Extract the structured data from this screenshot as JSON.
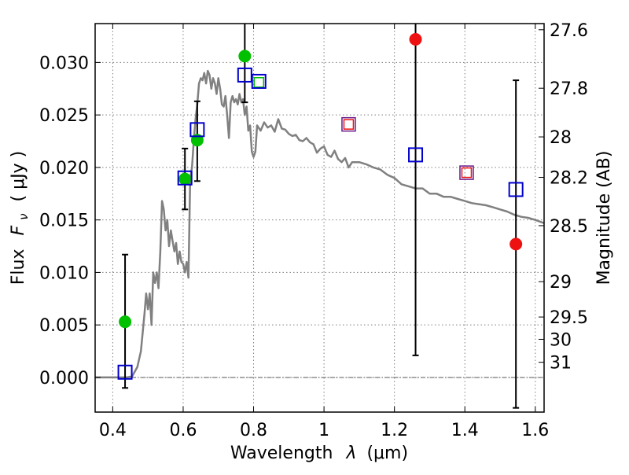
{
  "chart_data": {
    "type": "scatter",
    "title": "",
    "xlabel": "Wavelength",
    "xlabel_symbol": "λ",
    "xlabel_unit": "(μm)",
    "ylabel": "Flux",
    "ylabel_symbol": "F",
    "ylabel_sub": "ν",
    "ylabel_unit": "( μJy )",
    "y2label": "Magnitude (AB)",
    "xlim": [
      0.35,
      1.625
    ],
    "ylim": [
      -0.0033,
      0.0337
    ],
    "grid": true,
    "grid_style": "dotted",
    "x_ticks": [
      {
        "value": 0.4,
        "label": "0.4"
      },
      {
        "value": 0.6,
        "label": "0.6"
      },
      {
        "value": 0.8,
        "label": "0.8"
      },
      {
        "value": 1.0,
        "label": "1"
      },
      {
        "value": 1.2,
        "label": "1.2"
      },
      {
        "value": 1.4,
        "label": "1.4"
      },
      {
        "value": 1.6,
        "label": "1.6"
      }
    ],
    "y_ticks": [
      {
        "value": 0.0,
        "label": "0.000"
      },
      {
        "value": 0.005,
        "label": "0.005"
      },
      {
        "value": 0.01,
        "label": "0.010"
      },
      {
        "value": 0.015,
        "label": "0.015"
      },
      {
        "value": 0.02,
        "label": "0.020"
      },
      {
        "value": 0.025,
        "label": "0.025"
      },
      {
        "value": 0.03,
        "label": "0.030"
      }
    ],
    "mag_ticks": [
      {
        "value": 27.6,
        "label": "27.6"
      },
      {
        "value": 27.8,
        "label": "27.8"
      },
      {
        "value": 28.0,
        "label": "28"
      },
      {
        "value": 28.2,
        "label": "28.2"
      },
      {
        "value": 28.5,
        "label": "28.5"
      },
      {
        "value": 29.0,
        "label": "29"
      },
      {
        "value": 29.5,
        "label": "29.5"
      },
      {
        "value": 30.0,
        "label": "30"
      },
      {
        "value": 31.0,
        "label": "31"
      }
    ],
    "colors": {
      "model": "#808080",
      "green": "#00c000",
      "red": "#ee1111",
      "blue_box": "#0000cc",
      "errorbar": "#000000",
      "grid": "#7f7f7f",
      "inner_box_red": "#ee1111",
      "inner_box_green": "#00c000"
    },
    "model_sed": {
      "x": [
        0.35,
        0.4,
        0.44,
        0.455,
        0.47,
        0.48,
        0.49,
        0.495,
        0.5,
        0.505,
        0.51,
        0.515,
        0.52,
        0.525,
        0.53,
        0.535,
        0.54,
        0.545,
        0.55,
        0.555,
        0.56,
        0.565,
        0.57,
        0.575,
        0.58,
        0.585,
        0.59,
        0.595,
        0.6,
        0.605,
        0.61,
        0.615,
        0.62,
        0.625,
        0.63,
        0.635,
        0.64,
        0.645,
        0.65,
        0.655,
        0.66,
        0.665,
        0.67,
        0.675,
        0.68,
        0.685,
        0.69,
        0.695,
        0.7,
        0.705,
        0.71,
        0.715,
        0.72,
        0.725,
        0.73,
        0.735,
        0.74,
        0.745,
        0.75,
        0.755,
        0.76,
        0.765,
        0.77,
        0.775,
        0.78,
        0.785,
        0.79,
        0.795,
        0.8,
        0.805,
        0.81,
        0.82,
        0.83,
        0.84,
        0.85,
        0.86,
        0.87,
        0.88,
        0.89,
        0.9,
        0.91,
        0.92,
        0.93,
        0.94,
        0.95,
        0.96,
        0.97,
        0.98,
        0.99,
        1.0,
        1.01,
        1.02,
        1.03,
        1.04,
        1.05,
        1.06,
        1.07,
        1.08,
        1.1,
        1.12,
        1.14,
        1.16,
        1.18,
        1.2,
        1.22,
        1.24,
        1.26,
        1.28,
        1.3,
        1.32,
        1.34,
        1.36,
        1.38,
        1.4,
        1.42,
        1.44,
        1.46,
        1.48,
        1.5,
        1.52,
        1.54,
        1.56,
        1.58,
        1.6,
        1.625
      ],
      "y": [
        0.0,
        0.0,
        0.0,
        0.0001,
        0.001,
        0.0025,
        0.006,
        0.008,
        0.0065,
        0.008,
        0.005,
        0.01,
        0.009,
        0.01,
        0.0085,
        0.012,
        0.0168,
        0.016,
        0.014,
        0.015,
        0.0125,
        0.014,
        0.013,
        0.012,
        0.0128,
        0.0108,
        0.012,
        0.011,
        0.0108,
        0.01,
        0.011,
        0.0095,
        0.019,
        0.02,
        0.0225,
        0.0245,
        0.026,
        0.028,
        0.0285,
        0.0283,
        0.029,
        0.028,
        0.0292,
        0.0288,
        0.0275,
        0.0285,
        0.028,
        0.027,
        0.0285,
        0.0275,
        0.026,
        0.0258,
        0.0268,
        0.025,
        0.0228,
        0.0262,
        0.0268,
        0.0262,
        0.0265,
        0.026,
        0.027,
        0.0262,
        0.0265,
        0.025,
        0.0258,
        0.0235,
        0.024,
        0.0215,
        0.021,
        0.0215,
        0.024,
        0.0235,
        0.0243,
        0.0238,
        0.024,
        0.0234,
        0.0246,
        0.0237,
        0.0236,
        0.0232,
        0.023,
        0.0231,
        0.0226,
        0.0225,
        0.0228,
        0.0224,
        0.0222,
        0.0214,
        0.0218,
        0.022,
        0.0212,
        0.021,
        0.0216,
        0.0208,
        0.0205,
        0.0209,
        0.02,
        0.0205,
        0.0205,
        0.0203,
        0.02,
        0.0198,
        0.0193,
        0.019,
        0.0184,
        0.0182,
        0.018,
        0.018,
        0.0175,
        0.0175,
        0.0172,
        0.0172,
        0.017,
        0.0168,
        0.0166,
        0.0165,
        0.0164,
        0.0162,
        0.016,
        0.0158,
        0.0155,
        0.0153,
        0.0152,
        0.015,
        0.0147
      ]
    },
    "errorbars": [
      {
        "x": 0.435,
        "low": -0.001,
        "high": 0.0117
      },
      {
        "x": 0.605,
        "low": 0.016,
        "high": 0.0218
      },
      {
        "x": 0.64,
        "low": 0.0187,
        "high": 0.0263
      },
      {
        "x": 0.775,
        "low": 0.0262,
        "high": 0.034
      },
      {
        "x": 1.26,
        "low": 0.0021,
        "high": 0.034
      },
      {
        "x": 1.545,
        "low": -0.0029,
        "high": 0.0283
      }
    ],
    "green_points": [
      {
        "x": 0.435,
        "y": 0.0053
      },
      {
        "x": 0.605,
        "y": 0.0189
      },
      {
        "x": 0.64,
        "y": 0.0226
      },
      {
        "x": 0.775,
        "y": 0.0306
      }
    ],
    "red_points": [
      {
        "x": 1.26,
        "y": 0.0322
      },
      {
        "x": 1.545,
        "y": 0.0127
      }
    ],
    "blue_boxes": [
      {
        "x": 0.435,
        "y": 0.0005
      },
      {
        "x": 0.605,
        "y": 0.019
      },
      {
        "x": 0.64,
        "y": 0.0236
      },
      {
        "x": 0.775,
        "y": 0.0288
      },
      {
        "x": 0.815,
        "y": 0.0282
      },
      {
        "x": 1.26,
        "y": 0.0212
      },
      {
        "x": 1.545,
        "y": 0.0179
      }
    ],
    "inner_boxes": [
      {
        "x": 0.815,
        "y": 0.0281,
        "color": "green"
      },
      {
        "x": 1.07,
        "y": 0.0241,
        "color": "red"
      },
      {
        "x": 1.405,
        "y": 0.0195,
        "color": "red"
      }
    ],
    "purple_boxes": [
      {
        "x": 1.07,
        "y": 0.0241
      },
      {
        "x": 1.405,
        "y": 0.0195
      }
    ]
  }
}
